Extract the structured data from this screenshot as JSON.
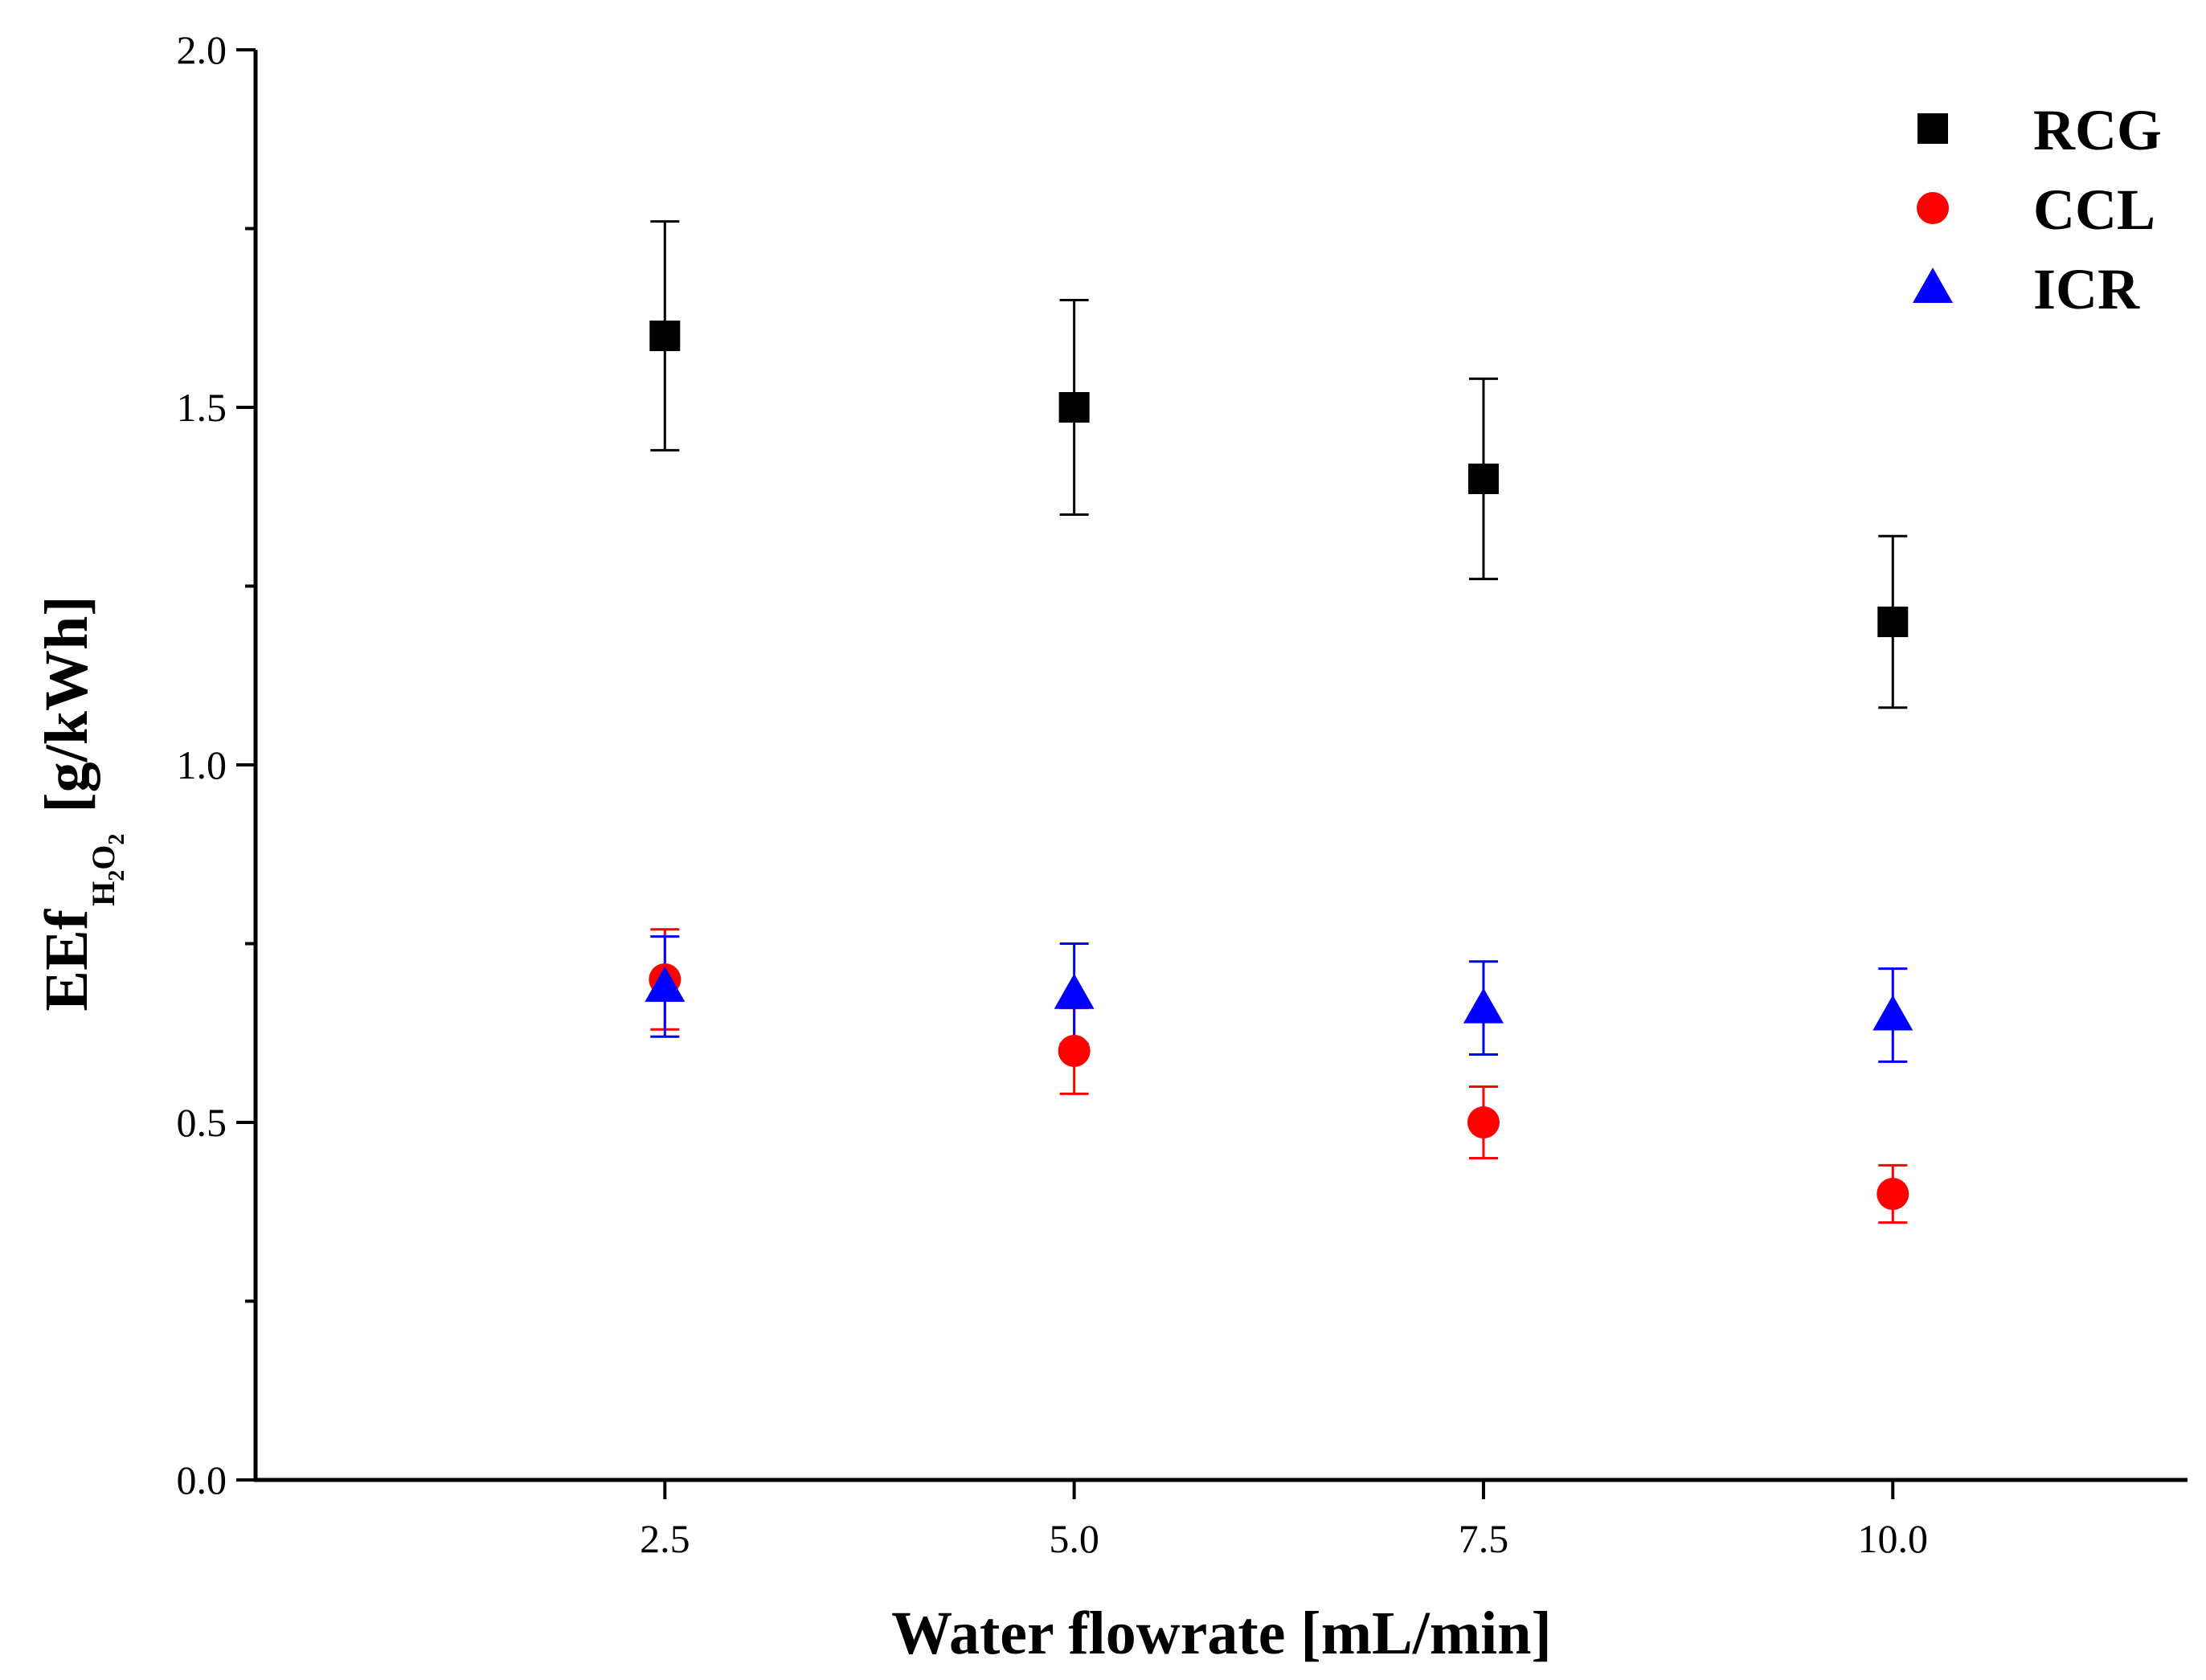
{
  "chart_data": {
    "type": "scatter",
    "title": "",
    "xlabel": "Water flowrate [mL/min]",
    "ylabel": {
      "main": "EEf",
      "sub_h": "H",
      "sub_2a": "2",
      "sub_o": "O",
      "sub_2b": "2",
      "unit": "[g/kWh]"
    },
    "xlim": [
      0.0,
      11.8
    ],
    "ylim": [
      0.0,
      2.0
    ],
    "x": [
      2.5,
      5.0,
      7.5,
      10.0
    ],
    "xtick_labels": [
      "2.5",
      "5.0",
      "7.5",
      "10.0"
    ],
    "ytick_labels": [
      "0.0",
      "0.5",
      "1.0",
      "1.5",
      "2.0"
    ],
    "ytick_values": [
      0.0,
      0.5,
      1.0,
      1.5,
      2.0
    ],
    "yminor_values": [
      0.25,
      0.75,
      1.25,
      1.75
    ],
    "legend_position": "top-right",
    "series": [
      {
        "name": "RCG",
        "marker": "square",
        "color": "#000000",
        "values": [
          1.6,
          1.5,
          1.4,
          1.2
        ],
        "errors": [
          0.16,
          0.15,
          0.14,
          0.12
        ]
      },
      {
        "name": "CCL",
        "marker": "circle",
        "color": "#ff0000",
        "values": [
          0.7,
          0.6,
          0.5,
          0.4
        ],
        "errors": [
          0.07,
          0.06,
          0.05,
          0.04
        ]
      },
      {
        "name": "ICR",
        "marker": "triangle",
        "color": "#0000ff",
        "values": [
          0.69,
          0.68,
          0.66,
          0.65
        ],
        "errors": [
          0.07,
          0.07,
          0.065,
          0.065
        ]
      }
    ]
  }
}
